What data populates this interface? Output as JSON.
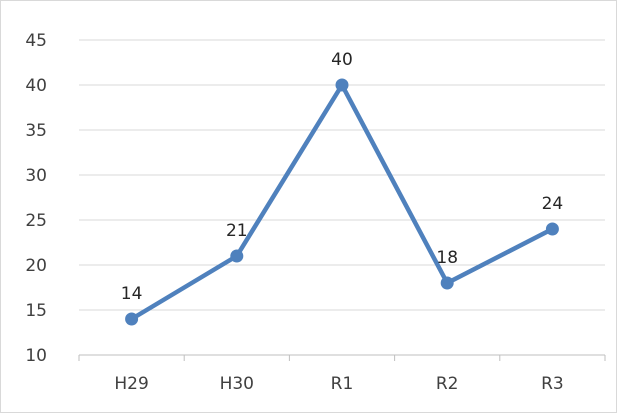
{
  "chart_data": {
    "type": "line",
    "categories": [
      "H29",
      "H30",
      "R1",
      "R2",
      "R3"
    ],
    "values": [
      14,
      21,
      40,
      18,
      24
    ],
    "data_labels": [
      "14",
      "21",
      "40",
      "18",
      "24"
    ],
    "y_ticks": [
      "10",
      "15",
      "20",
      "25",
      "30",
      "35",
      "40",
      "45"
    ],
    "ylim": [
      10,
      45
    ],
    "y_step": 5,
    "title": "",
    "xlabel": "",
    "ylabel": "",
    "grid": true,
    "legend": "none",
    "colors": {
      "line": "#4f81bd",
      "marker": "#4f81bd",
      "gridline": "#d9d9d9",
      "axis_line": "#bfbfbf",
      "tick_text": "#404040",
      "data_label_text": "#262626"
    }
  }
}
